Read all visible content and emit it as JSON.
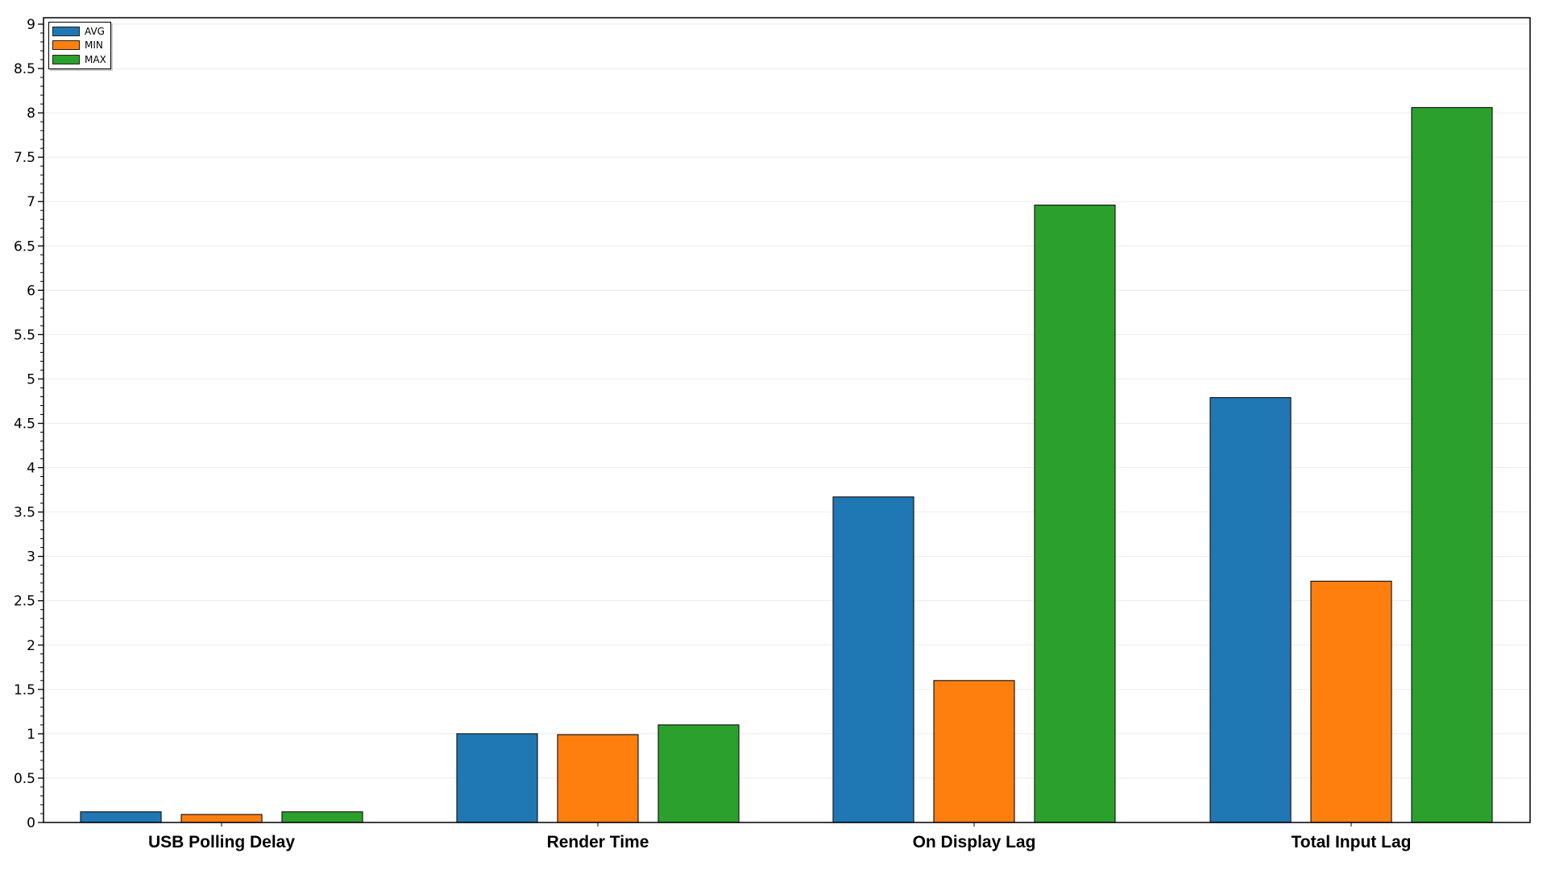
{
  "chart_data": {
    "type": "bar",
    "categories": [
      "USB Polling Delay",
      "Render Time",
      "On Display Lag",
      "Total Input Lag"
    ],
    "series": [
      {
        "name": "AVG",
        "color": "#1f77b4",
        "values": [
          0.12,
          1.0,
          3.67,
          4.79
        ]
      },
      {
        "name": "MIN",
        "color": "#ff7f0e",
        "values": [
          0.09,
          0.99,
          1.6,
          2.72
        ]
      },
      {
        "name": "MAX",
        "color": "#2ca02c",
        "values": [
          0.12,
          1.1,
          6.96,
          8.06
        ]
      }
    ],
    "title": "",
    "xlabel": "",
    "ylabel": "",
    "ylim": [
      0,
      9
    ],
    "yticks": [
      "0",
      "0.5",
      "1",
      "1.5",
      "2",
      "2.5",
      "3",
      "3.5",
      "4",
      "4.5",
      "5",
      "5.5",
      "6",
      "6.5",
      "7",
      "7.5",
      "8",
      "8.5",
      "9"
    ],
    "grid": true,
    "legend": "top-left"
  }
}
